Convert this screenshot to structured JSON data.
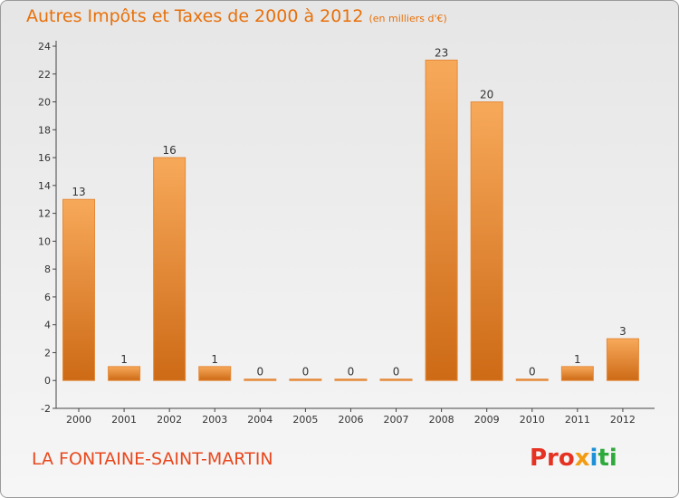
{
  "header": {
    "title": "Autres Impôts et Taxes de 2000 à 2012",
    "subtitle": "(en milliers d'€)"
  },
  "footer": {
    "commune": "LA FONTAINE-SAINT-MARTIN",
    "brand": [
      "Pro",
      "x",
      "i",
      "ti"
    ]
  },
  "colors": {
    "bar_light": "#f7a95a",
    "bar_dark": "#cd6a16",
    "title": "#e8700a",
    "commune": "#e8481e"
  },
  "chart_data": {
    "type": "bar",
    "categories": [
      "2000",
      "2001",
      "2002",
      "2003",
      "2004",
      "2005",
      "2006",
      "2007",
      "2008",
      "2009",
      "2010",
      "2011",
      "2012"
    ],
    "values": [
      13,
      1,
      16,
      1,
      0,
      0,
      0,
      0,
      23,
      20,
      0,
      1,
      3
    ],
    "data_labels": [
      "13",
      "1",
      "16",
      "1",
      "0",
      "0",
      "0",
      "0",
      "23",
      "20",
      "0",
      "1",
      "3"
    ],
    "title": "Autres Impôts et Taxes de 2000 à 2012",
    "subtitle": "(en milliers d'€)",
    "xlabel": "",
    "ylabel": "",
    "ylim": [
      -2,
      24
    ],
    "yticks": [
      -2,
      0,
      2,
      4,
      6,
      8,
      10,
      12,
      14,
      16,
      18,
      20,
      22,
      24
    ],
    "grid": false,
    "legend": "none"
  }
}
